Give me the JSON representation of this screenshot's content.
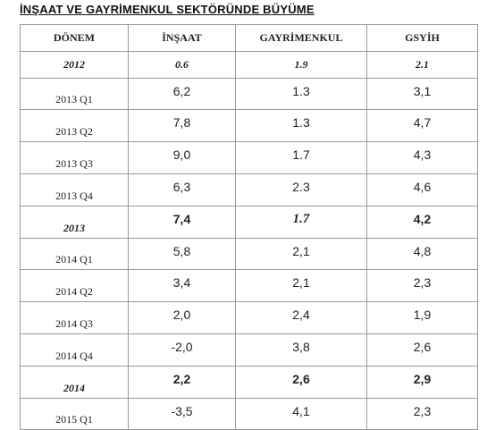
{
  "header": {
    "title": "İNŞAAT VE GAYRİMENKUL SEKTÖRÜNDE BÜYÜME"
  },
  "table": {
    "columns": [
      "DÖNEM",
      "İNŞAAT",
      "GAYRİMENKUL",
      "GSYİH"
    ],
    "rows": [
      [
        "2012",
        "0.6",
        "1.9",
        "2.1"
      ],
      [
        "2013 Q1",
        "6,2",
        "1.3",
        "3,1"
      ],
      [
        "2013 Q2",
        "7,8",
        "1.3",
        "4,7"
      ],
      [
        "2013 Q3",
        "9,0",
        "1.7",
        "4,3"
      ],
      [
        "2013 Q4",
        "6,3",
        "2.3",
        "4,6"
      ],
      [
        "2013",
        "7,4",
        "1.7",
        "4,2"
      ],
      [
        "2014 Q1",
        "5,8",
        "2,1",
        "4,8"
      ],
      [
        "2014 Q2",
        "3,4",
        "2,1",
        "2,3"
      ],
      [
        "2014 Q3",
        "2,0",
        "2,4",
        "1,9"
      ],
      [
        "2014 Q4",
        "-2,0",
        "3,8",
        "2,6"
      ],
      [
        "2014",
        "2,2",
        "2,6",
        "2,9"
      ],
      [
        "2015 Q1",
        "-3,5",
        "4,1",
        "2,3"
      ]
    ]
  }
}
